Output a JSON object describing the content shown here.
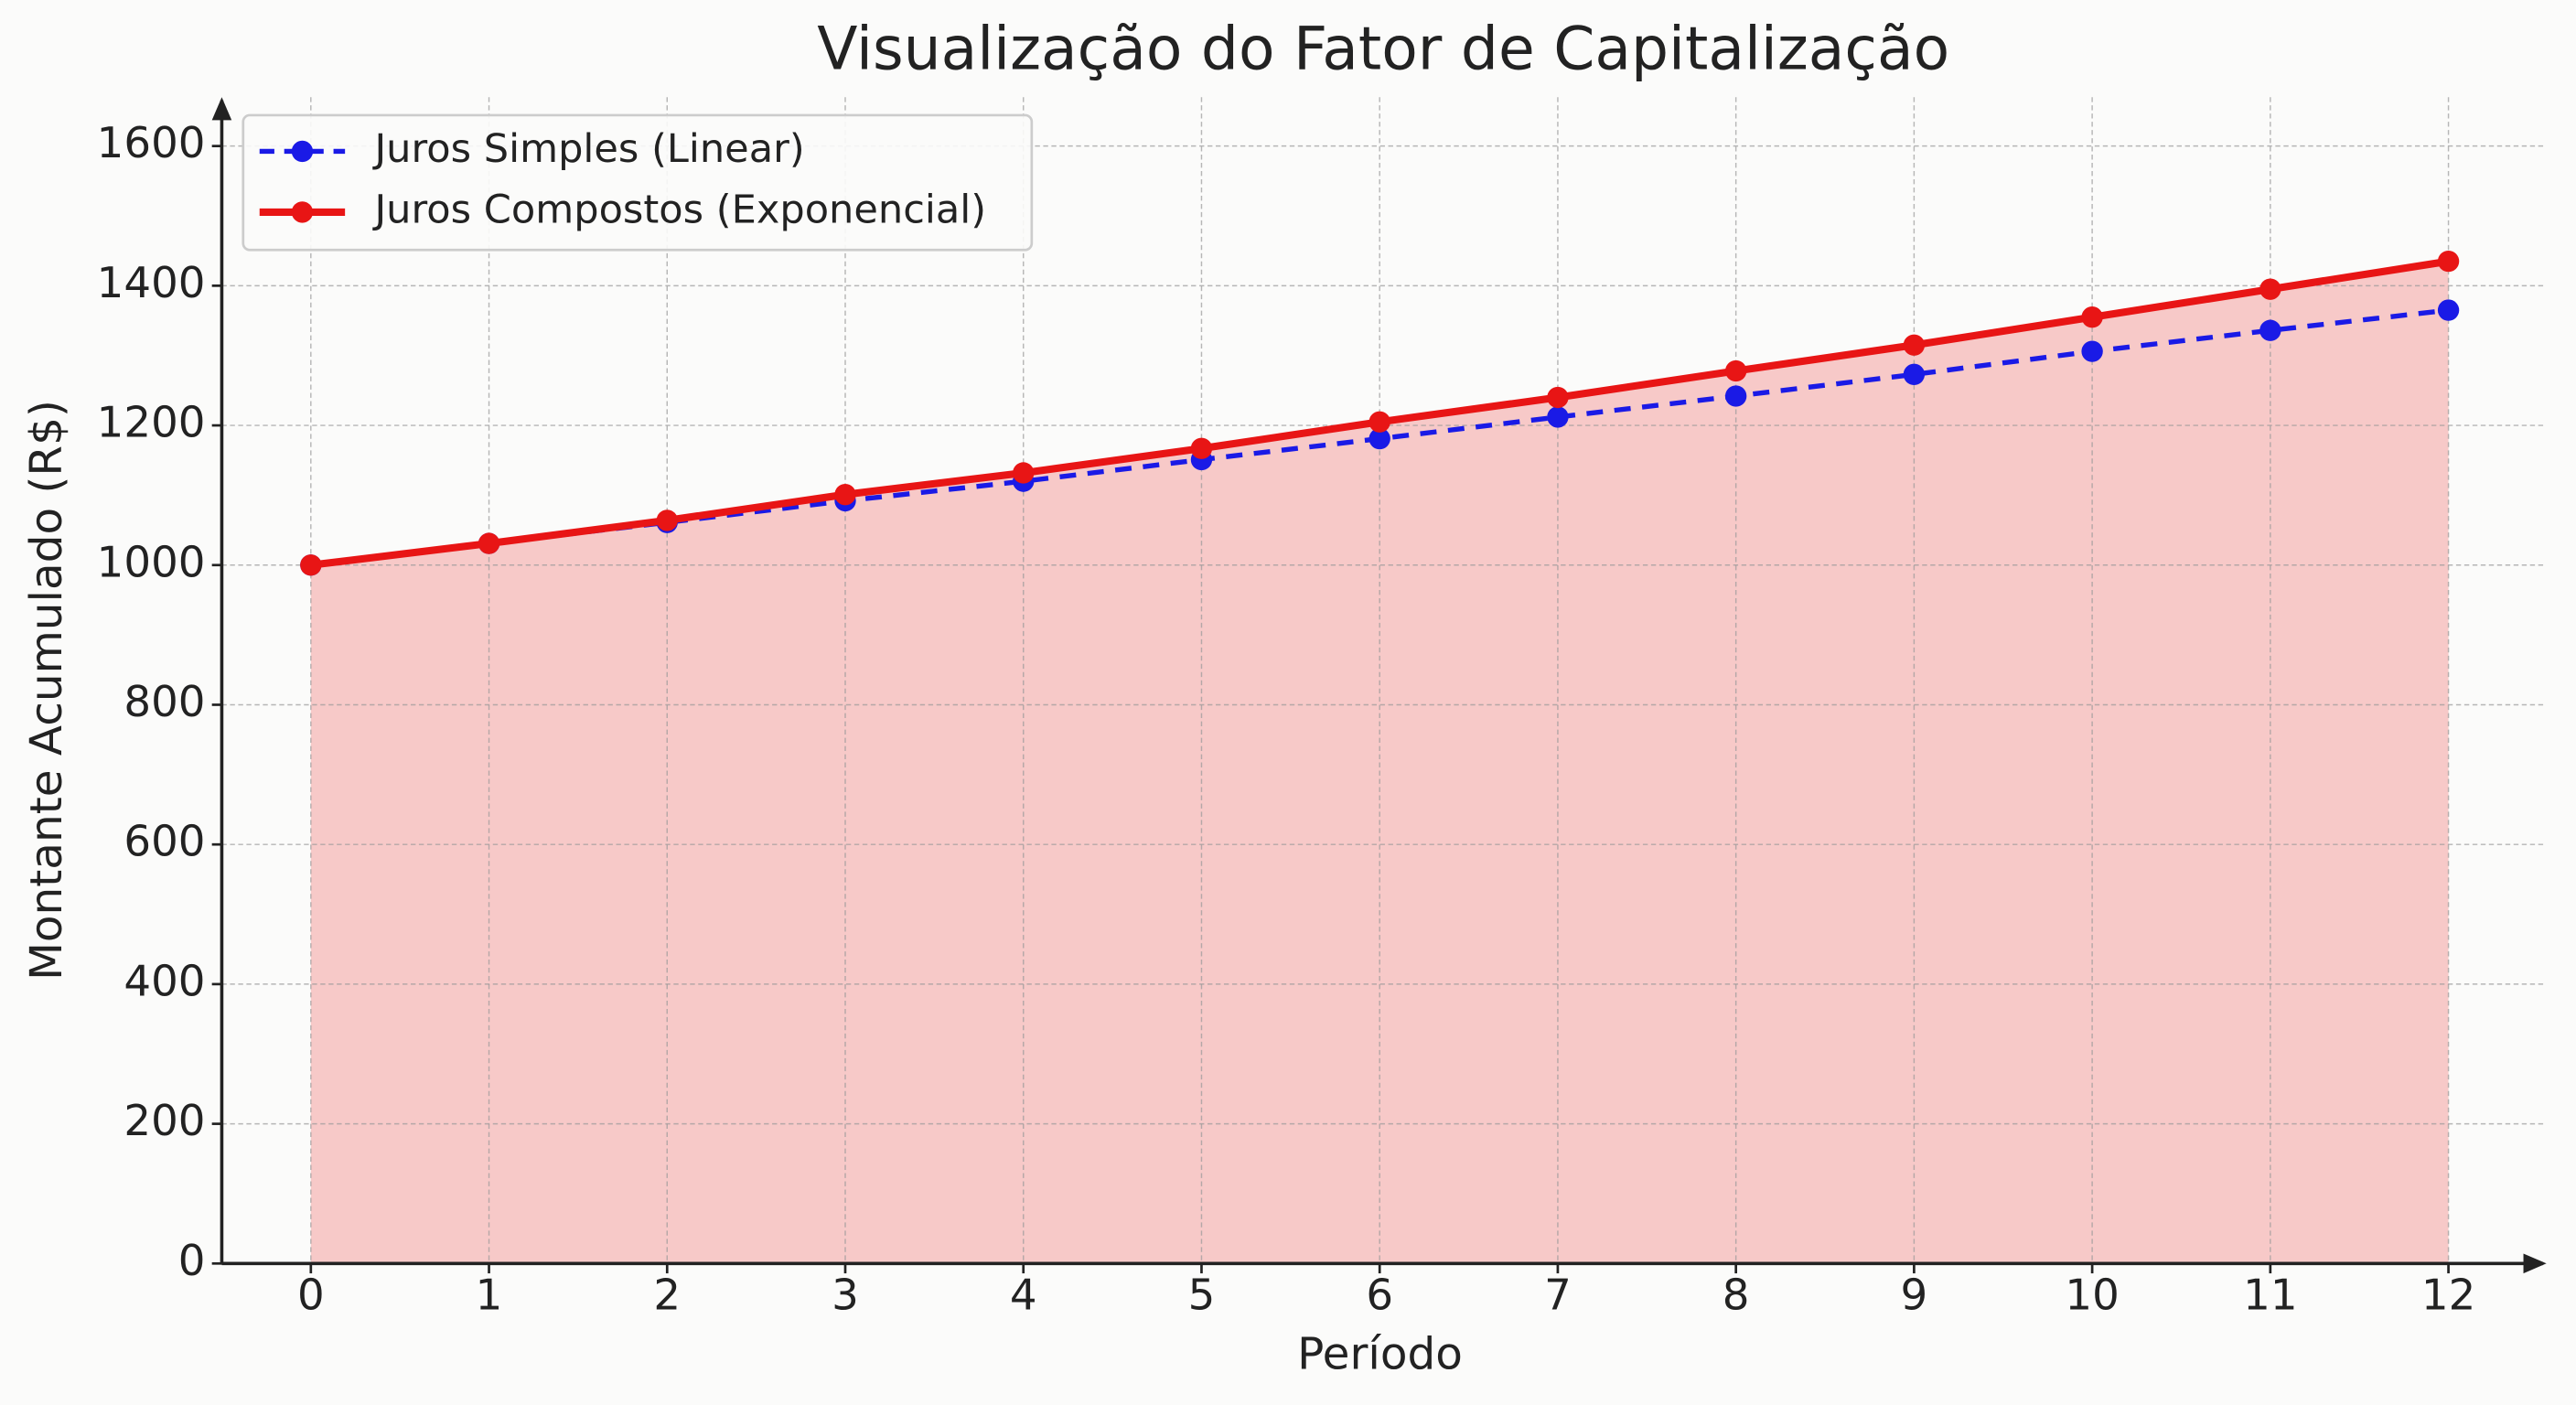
{
  "chart_data": {
    "type": "line",
    "title": "Visualização do Fator de Capitalização",
    "x_label": "Período",
    "y_label": "Montante Acumulado (R$)",
    "x": [
      0,
      1,
      2,
      3,
      4,
      5,
      6,
      7,
      8,
      9,
      10,
      11,
      12
    ],
    "series": [
      {
        "name": "Juros Simples (Linear)",
        "color": "#1a1ae6",
        "style": "dashed",
        "values": [
          1000,
          1031,
          1061,
          1092,
          1120,
          1151,
          1181,
          1212,
          1242,
          1273,
          1306,
          1336,
          1365
        ]
      },
      {
        "name": "Juros Compostos (Exponencial)",
        "color": "#e81515",
        "style": "solid",
        "fill": true,
        "values": [
          1000,
          1031,
          1064,
          1101,
          1132,
          1167,
          1205,
          1240,
          1278,
          1315,
          1355,
          1395,
          1435
        ]
      }
    ],
    "xlim": [
      -0.5,
      12.55
    ],
    "ylim": [
      0,
      1670
    ],
    "xticks": [
      0,
      1,
      2,
      3,
      4,
      5,
      6,
      7,
      8,
      9,
      10,
      11,
      12
    ],
    "yticks": [
      0,
      200,
      400,
      600,
      800,
      1000,
      1200,
      1400,
      1600
    ],
    "grid": true,
    "legend": "upper-left"
  }
}
